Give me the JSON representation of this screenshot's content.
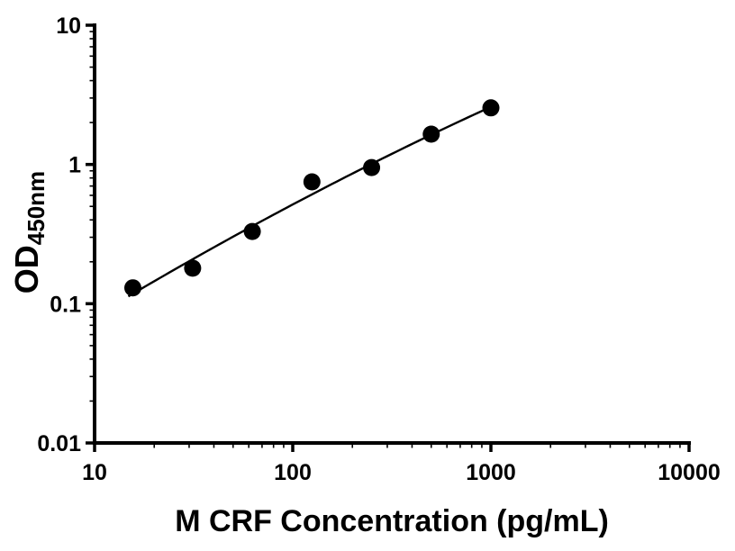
{
  "figure": {
    "background": "#ffffff"
  },
  "chart_data": {
    "type": "scatter",
    "title": "",
    "xlabel": "M CRF Concentration (pg/mL)",
    "ylabel_main": "OD",
    "ylabel_sub": "450nm",
    "x_scale": "log10",
    "y_scale": "log10",
    "xlim": [
      10,
      10000
    ],
    "ylim": [
      0.01,
      10
    ],
    "x_ticks": [
      10,
      100,
      1000,
      10000
    ],
    "x_tick_labels": [
      "10",
      "100",
      "1000",
      "10000"
    ],
    "y_ticks": [
      0.01,
      0.1,
      1,
      10
    ],
    "y_tick_labels": [
      "0.01",
      "0.1",
      "1",
      "10"
    ],
    "minor_ticks": true,
    "grid": false,
    "legend": "none",
    "points": [
      {
        "x": 15.6,
        "y": 0.13
      },
      {
        "x": 31.25,
        "y": 0.18
      },
      {
        "x": 62.5,
        "y": 0.33
      },
      {
        "x": 125,
        "y": 0.75
      },
      {
        "x": 250,
        "y": 0.95
      },
      {
        "x": 500,
        "y": 1.65
      },
      {
        "x": 1000,
        "y": 2.55
      }
    ],
    "fit_curve": {
      "model": "quadratic in log10-log10 space: log10(y) = a + b*(log10(x)-u0) + c*(log10(x)-u0)^2",
      "a": -0.215,
      "b": 0.7427,
      "c": -0.0514,
      "u0": 2.0969,
      "x_range": [
        14.8,
        1000
      ]
    },
    "marker": {
      "shape": "circle",
      "color": "#000000",
      "radius_px": 9.5
    },
    "line_color": "#000000",
    "axis_color": "#000000"
  }
}
